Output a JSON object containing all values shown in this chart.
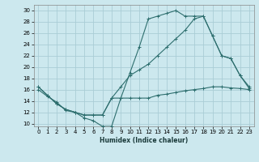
{
  "xlabel": "Humidex (Indice chaleur)",
  "bg_color": "#cce8ee",
  "grid_color": "#aacdd6",
  "line_color": "#2d6e6e",
  "xlim": [
    -0.5,
    23.5
  ],
  "ylim": [
    9.5,
    31.0
  ],
  "xticks": [
    0,
    1,
    2,
    3,
    4,
    5,
    6,
    7,
    8,
    9,
    10,
    11,
    12,
    13,
    14,
    15,
    16,
    17,
    18,
    19,
    20,
    21,
    22,
    23
  ],
  "yticks": [
    10,
    12,
    14,
    16,
    18,
    20,
    22,
    24,
    26,
    28,
    30
  ],
  "hours": [
    0,
    1,
    2,
    3,
    4,
    5,
    6,
    7,
    8,
    9,
    10,
    11,
    12,
    13,
    14,
    15,
    16,
    17,
    18,
    19,
    20,
    21,
    22,
    23
  ],
  "top_line": [
    16.5,
    15.0,
    13.5,
    12.5,
    12.0,
    11.0,
    10.5,
    9.5,
    9.5,
    14.5,
    19.0,
    23.5,
    28.5,
    29.0,
    29.5,
    30.0,
    29.0,
    29.0,
    29.0,
    25.5,
    22.0,
    21.5,
    18.5,
    16.5
  ],
  "mid_line": [
    16.5,
    15.0,
    13.5,
    12.5,
    12.0,
    11.5,
    11.5,
    11.5,
    14.5,
    16.5,
    18.5,
    19.5,
    20.5,
    22.0,
    23.5,
    25.0,
    26.5,
    28.5,
    29.0,
    25.5,
    22.0,
    21.5,
    18.5,
    16.2
  ],
  "bot_line": [
    16.0,
    14.8,
    13.8,
    12.3,
    12.0,
    11.5,
    11.5,
    11.5,
    14.5,
    14.5,
    14.5,
    14.5,
    14.5,
    15.0,
    15.2,
    15.5,
    15.8,
    16.0,
    16.2,
    16.5,
    16.5,
    16.3,
    16.2,
    16.0
  ]
}
